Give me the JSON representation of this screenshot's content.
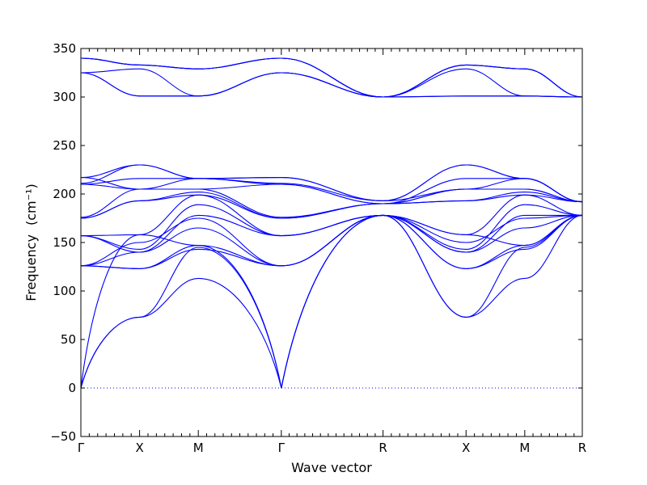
{
  "chart_data": {
    "type": "line",
    "title": "",
    "xlabel": "Wave vector",
    "ylabel": "Frequency",
    "ylabel_unit": "(cm⁻¹)",
    "ylim": [
      -50,
      350
    ],
    "yticks": [
      -50,
      0,
      50,
      100,
      150,
      200,
      250,
      300,
      350
    ],
    "grid": false,
    "line_color": "#0000ff",
    "zero_line": {
      "value": 0,
      "style": "dotted"
    },
    "x_ticks": [
      {
        "label": "Γ",
        "x": 0
      },
      {
        "label": "X",
        "x": 0.5
      },
      {
        "label": "M",
        "x": 1.0
      },
      {
        "label": "Γ",
        "x": 1.707
      },
      {
        "label": "R",
        "x": 2.573
      },
      {
        "label": "X",
        "x": 3.28
      },
      {
        "label": "M",
        "x": 3.78
      },
      {
        "label": "R",
        "x": 4.27
      }
    ],
    "series": [
      {
        "values": [
          0,
          73,
          113,
          0,
          178,
          73,
          113,
          178
        ]
      },
      {
        "values": [
          0,
          73,
          145,
          0,
          178,
          73,
          145,
          178
        ]
      },
      {
        "values": [
          0,
          158,
          147,
          0,
          178,
          158,
          147,
          178
        ]
      },
      {
        "values": [
          126,
          123,
          147,
          126,
          178,
          123,
          147,
          178
        ]
      },
      {
        "values": [
          126,
          123,
          143,
          126,
          178,
          123,
          143,
          178
        ]
      },
      {
        "values": [
          126,
          140,
          165,
          126,
          178,
          140,
          165,
          178
        ]
      },
      {
        "values": [
          126,
          150,
          175,
          126,
          178,
          150,
          175,
          178
        ]
      },
      {
        "values": [
          157,
          140,
          178,
          157,
          178,
          140,
          178,
          178
        ]
      },
      {
        "values": [
          157,
          143,
          189,
          157,
          178,
          143,
          189,
          178
        ]
      },
      {
        "values": [
          157,
          158,
          199,
          157,
          178,
          158,
          199,
          178
        ]
      },
      {
        "values": [
          175,
          193,
          199,
          175,
          190,
          193,
          199,
          192
        ]
      },
      {
        "values": [
          175,
          193,
          202,
          175,
          190,
          193,
          202,
          192
        ]
      },
      {
        "values": [
          176,
          205,
          205,
          176,
          190,
          205,
          205,
          192
        ]
      },
      {
        "values": [
          210,
          205,
          205,
          210,
          190,
          205,
          205,
          192
        ]
      },
      {
        "values": [
          210,
          216,
          216,
          210,
          190,
          216,
          216,
          192
        ]
      },
      {
        "values": [
          211,
          230,
          216,
          211,
          193,
          230,
          216,
          192
        ]
      },
      {
        "values": [
          217,
          230,
          216,
          217,
          193,
          230,
          216,
          192
        ]
      },
      {
        "values": [
          217,
          205,
          216,
          217,
          193,
          205,
          216,
          192
        ]
      },
      {
        "values": [
          325,
          301,
          301,
          325,
          300,
          301,
          301,
          300
        ]
      },
      {
        "values": [
          325,
          301,
          301,
          325,
          300,
          301,
          301,
          300
        ]
      },
      {
        "values": [
          325,
          329,
          301,
          325,
          300,
          329,
          301,
          300
        ]
      },
      {
        "values": [
          340,
          333,
          329,
          340,
          300,
          333,
          329,
          300
        ]
      },
      {
        "values": [
          340,
          333,
          329,
          340,
          300,
          333,
          329,
          300
        ]
      },
      {
        "values": [
          340,
          333,
          329,
          340,
          300,
          333,
          329,
          300
        ]
      }
    ]
  }
}
